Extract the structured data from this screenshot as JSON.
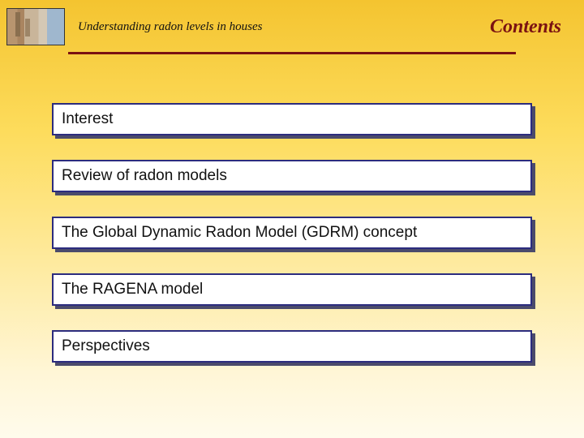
{
  "header": {
    "subtitle": "Understanding radon levels in houses",
    "page_title": "Contents"
  },
  "toc": {
    "items": [
      {
        "label": "Interest"
      },
      {
        "label": "Review of radon models"
      },
      {
        "label": "The Global Dynamic Radon Model (GDRM) concept"
      },
      {
        "label": "The RAGENA model"
      },
      {
        "label": "Perspectives"
      }
    ]
  },
  "colors": {
    "accent": "#7a1212",
    "box_border": "#2c2c7e",
    "box_shadow": "#4b4b6b",
    "bg_top": "#f4c430",
    "bg_bottom": "#fffbec"
  }
}
